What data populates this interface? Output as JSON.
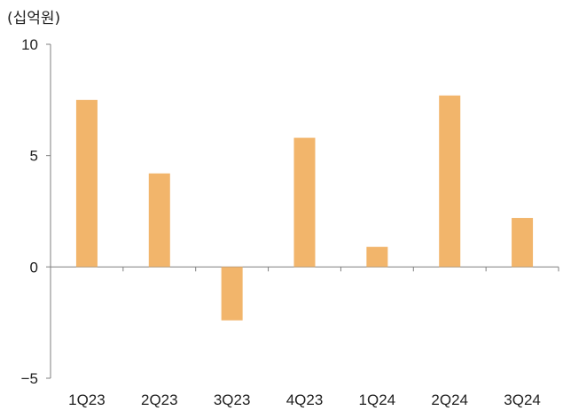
{
  "chart_data": {
    "type": "bar",
    "unit_label": "(십억원)",
    "categories": [
      "1Q23",
      "2Q23",
      "3Q23",
      "4Q23",
      "1Q24",
      "2Q24",
      "3Q24"
    ],
    "values": [
      7.5,
      4.2,
      -2.4,
      5.8,
      0.9,
      7.7,
      2.2
    ],
    "ylim": [
      -5,
      10
    ],
    "yticks": [
      10,
      5,
      0,
      -5
    ],
    "ytick_labels": [
      "10",
      "5",
      "0",
      "−5"
    ],
    "grid": false,
    "colors": {
      "bar": "#F2B56B",
      "axis": "#7f7f7f",
      "text": "#222222"
    }
  }
}
